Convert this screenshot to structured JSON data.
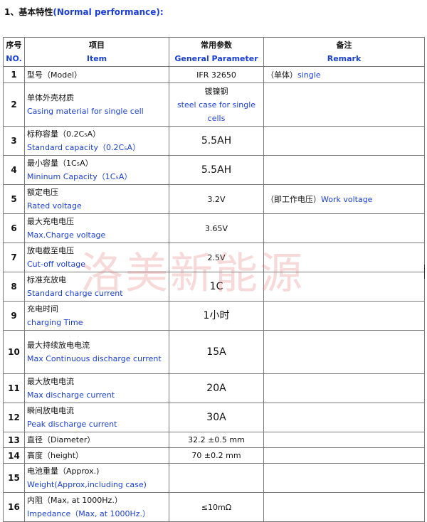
{
  "heading": {
    "prefix": "1、基本特性",
    "en": "(Normal performance):"
  },
  "table": {
    "headers": {
      "no_zh": "序号",
      "no_en": "NO.",
      "item_zh": "项目",
      "item_en": "Item",
      "param_zh": "常用参数",
      "param_en": "General Parameter",
      "remark_zh": "备注",
      "remark_en": "Remark"
    },
    "rows": [
      {
        "no": "1",
        "zh": "型号（Model）",
        "en": "",
        "param": "IFR 32650",
        "param_en": "",
        "remark_zh": "（单体）",
        "remark_en": "single"
      },
      {
        "no": "2",
        "zh": "单体外壳材质",
        "en": "Casing material for single cell",
        "param": "镀镍钢",
        "param_en": "steel case for single cells",
        "remark_zh": "",
        "remark_en": ""
      },
      {
        "no": "3",
        "zh": "标称容量（0.2C₅A）",
        "en": "Standard capacity（0.2C₅A）",
        "param": "5.5AH",
        "param_en": "",
        "remark_zh": "",
        "remark_en": ""
      },
      {
        "no": "4",
        "zh": "最小容量（1C₅A）",
        "en": "Mininum Capacity（1C₅A）",
        "param": "5.5AH",
        "param_en": "",
        "remark_zh": "",
        "remark_en": ""
      },
      {
        "no": "5",
        "zh": "额定电压",
        "en": "Rated voltage",
        "param": "3.2V",
        "param_en": "",
        "remark_zh": "（即工作电压）",
        "remark_en": "Work voltage"
      },
      {
        "no": "6",
        "zh": "最大充电电压",
        "en": "Max.Charge voltage",
        "param": "3.65V",
        "param_en": "",
        "remark_zh": "",
        "remark_en": ""
      },
      {
        "no": "7",
        "zh": "放电截至电压",
        "en": "Cut-off voltage",
        "param": "2.5V",
        "param_en": "",
        "remark_zh": "",
        "remark_en": ""
      },
      {
        "no": "8",
        "zh": "标准充放电",
        "en": "Standard charge current",
        "param": "1C",
        "param_en": "",
        "remark_zh": "",
        "remark_en": ""
      },
      {
        "no": "9",
        "zh": "充电时间",
        "en": "charging Time",
        "param": "1小时",
        "param_en": "",
        "remark_zh": "",
        "remark_en": ""
      },
      {
        "no": "10",
        "zh": "最大持续放电电流",
        "en": "Max Continuous discharge current",
        "param": "15A",
        "param_en": "",
        "remark_zh": "",
        "remark_en": ""
      },
      {
        "no": "11",
        "zh": "最大放电电流",
        "en": "Max discharge current",
        "param": "20A",
        "param_en": "",
        "remark_zh": "",
        "remark_en": ""
      },
      {
        "no": "12",
        "zh": "瞬间放电电流",
        "en": "Peak discharge current",
        "param": "30A",
        "param_en": "",
        "remark_zh": "",
        "remark_en": ""
      },
      {
        "no": "13",
        "zh": "直径（Diameter）",
        "en": "",
        "param": "32.2 ±0.5 mm",
        "param_en": "",
        "remark_zh": "",
        "remark_en": ""
      },
      {
        "no": "14",
        "zh": "高度（height）",
        "en": "",
        "param": "70 ±0.2 mm",
        "param_en": "",
        "remark_zh": "",
        "remark_en": ""
      },
      {
        "no": "15",
        "zh": "电池重量（Approx.)",
        "en": "Weight(Approx,including case)",
        "param": "",
        "param_en": "",
        "remark_zh": "",
        "remark_en": ""
      },
      {
        "no": "16",
        "zh": "内阻（Max, at 1000Hz.）",
        "en": "Impedance（Max, at 1000Hz.）",
        "param": "≤10mΩ",
        "param_en": "",
        "remark_zh": "",
        "remark_en": ""
      }
    ]
  },
  "watermark": "洛美新能源"
}
